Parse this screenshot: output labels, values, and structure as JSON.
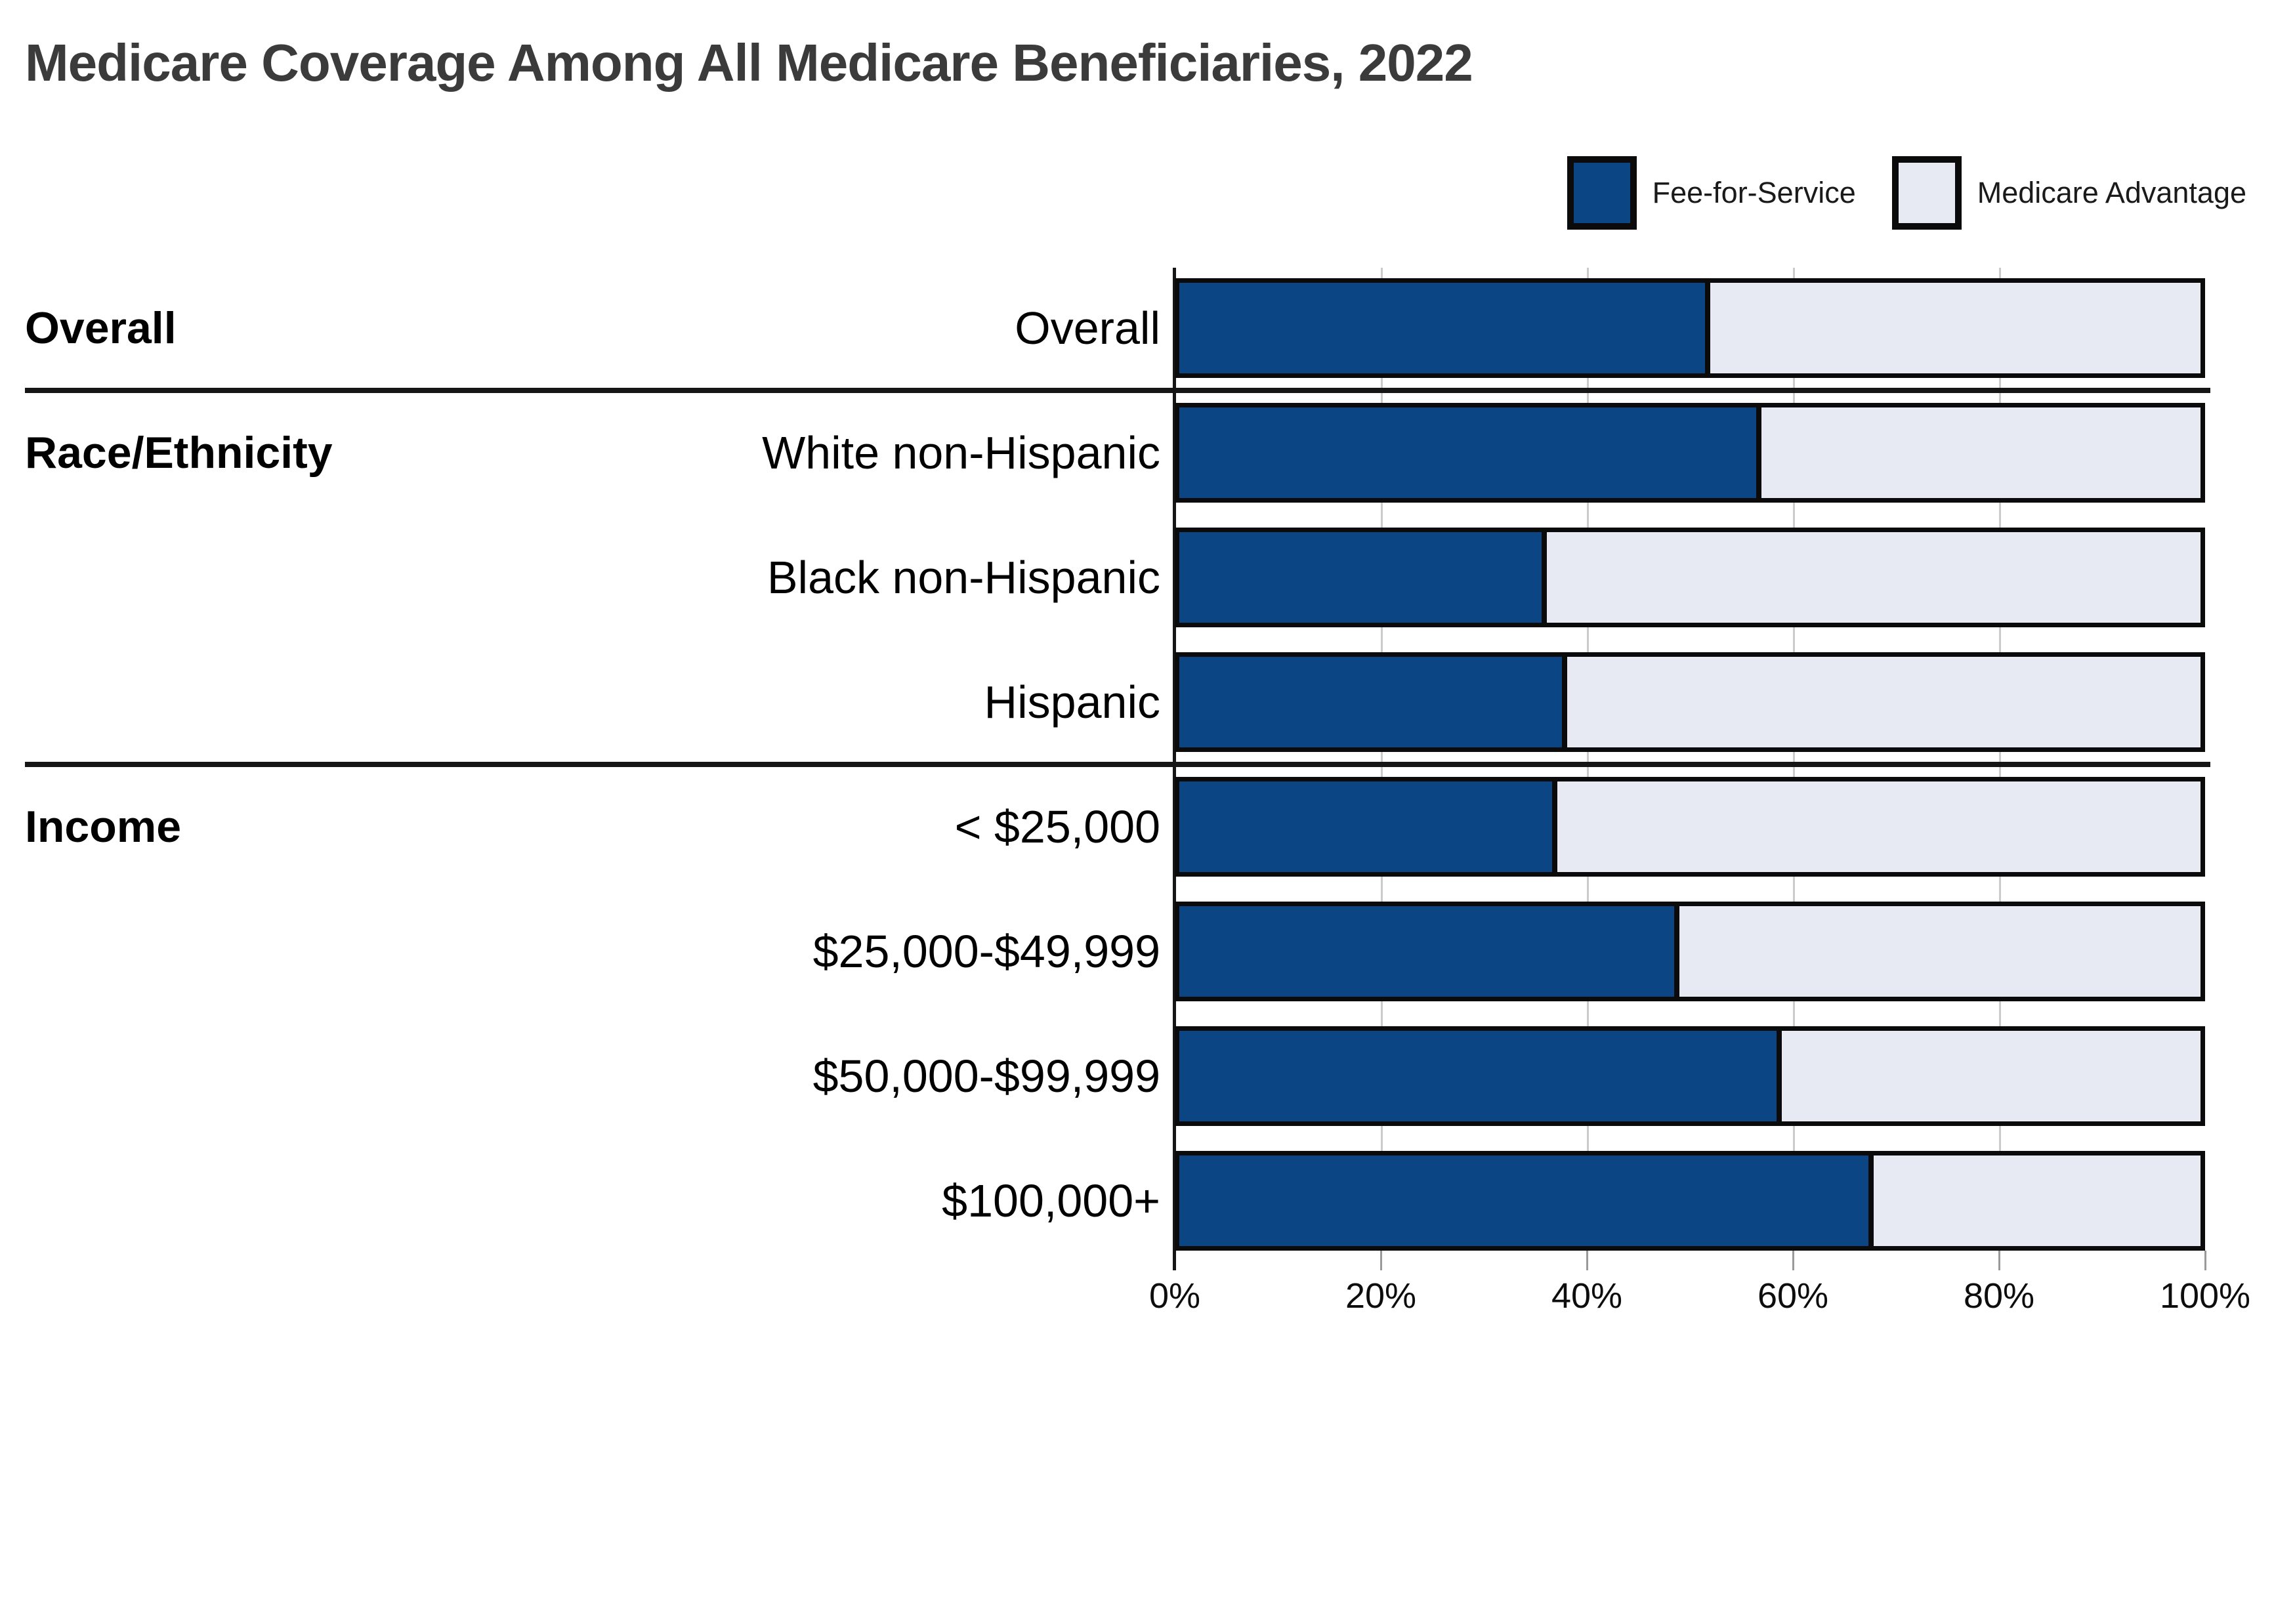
{
  "title": "Medicare Coverage Among All Medicare Beneficiaries, 2022",
  "legend": {
    "items": [
      {
        "label": "Fee-for-Service",
        "color": "#0B4584"
      },
      {
        "label": "Medicare Advantage",
        "color": "#E7EAF2"
      }
    ]
  },
  "colors": {
    "fee_for_service": "#0B4584",
    "medicare_advantage": "#E7EAF2",
    "bar_border": "#0B0B0B",
    "gridline": "#CBCBCB",
    "title_text": "#3B3B3B",
    "separator": "#151515"
  },
  "chart_data": {
    "type": "bar",
    "orientation": "horizontal",
    "stacked": true,
    "title": "Medicare Coverage Among All Medicare Beneficiaries, 2022",
    "series_names": [
      "Fee-for-Service",
      "Medicare Advantage"
    ],
    "unit": "%",
    "xlim": [
      0,
      100
    ],
    "x_ticks": [
      {
        "value": 0,
        "label": "0%"
      },
      {
        "value": 20,
        "label": "20%"
      },
      {
        "value": 40,
        "label": "40%"
      },
      {
        "value": 60,
        "label": "60%"
      },
      {
        "value": 80,
        "label": "80%"
      },
      {
        "value": 100,
        "label": "100%"
      }
    ],
    "grid": "vertical",
    "legend_position": "top-right",
    "sections": [
      {
        "label": "Overall",
        "rows": [
          {
            "category": "Overall",
            "fee_for_service": 52,
            "medicare_advantage": 48
          }
        ]
      },
      {
        "label": "Race/Ethnicity",
        "rows": [
          {
            "category": "White non-Hispanic",
            "fee_for_service": 57,
            "medicare_advantage": 43
          },
          {
            "category": "Black non-Hispanic",
            "fee_for_service": 36,
            "medicare_advantage": 64
          },
          {
            "category": "Hispanic",
            "fee_for_service": 38,
            "medicare_advantage": 62
          }
        ]
      },
      {
        "label": "Income",
        "rows": [
          {
            "category": "< $25,000",
            "fee_for_service": 37,
            "medicare_advantage": 63
          },
          {
            "category": "$25,000-$49,999",
            "fee_for_service": 49,
            "medicare_advantage": 51
          },
          {
            "category": "$50,000-$99,999",
            "fee_for_service": 59,
            "medicare_advantage": 41
          },
          {
            "category": "$100,000+",
            "fee_for_service": 68,
            "medicare_advantage": 32
          }
        ]
      }
    ]
  }
}
